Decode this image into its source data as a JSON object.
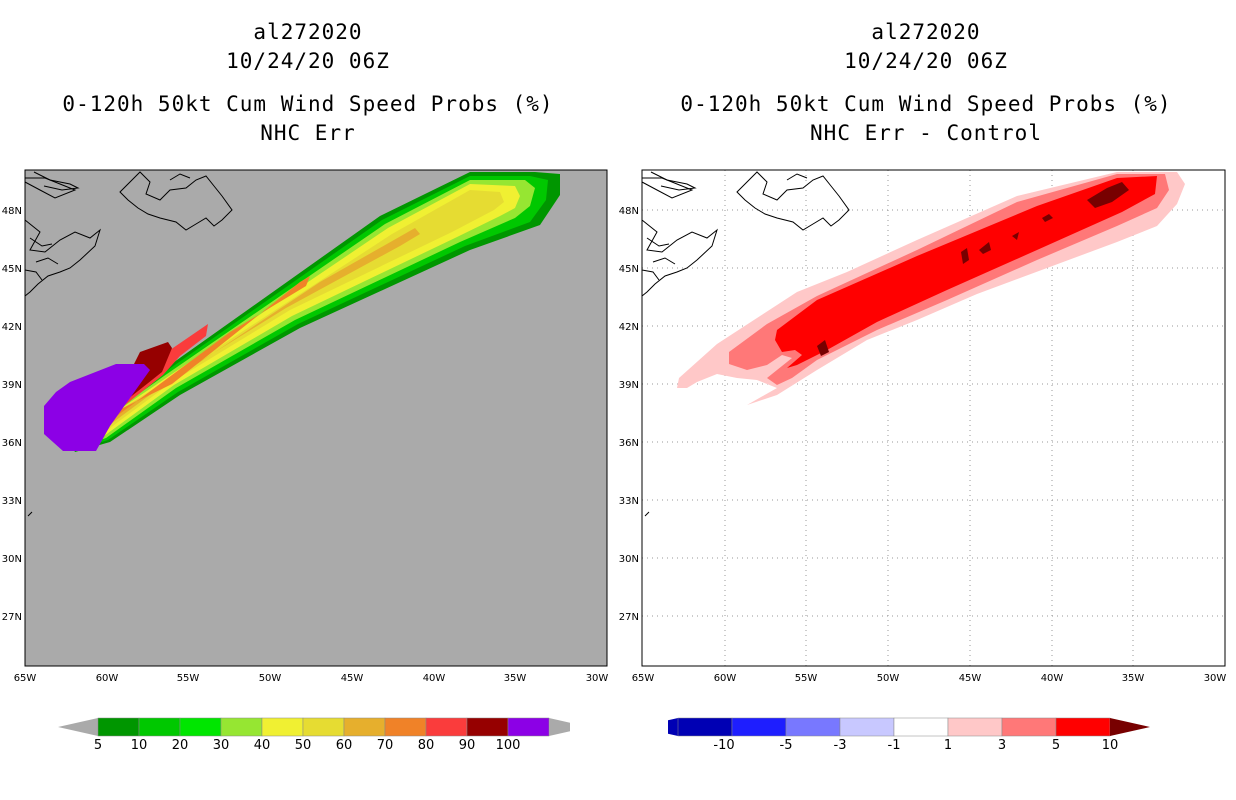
{
  "left_panel": {
    "title_lines": [
      "al272020",
      "10/24/20 06Z"
    ],
    "subtitle_lines": [
      "0-120h 50kt Cum Wind Speed Probs (%)",
      "NHC Err"
    ],
    "background_color": "#aaaaaa",
    "colorbar": {
      "labels": [
        "5",
        "10",
        "20",
        "30",
        "40",
        "50",
        "60",
        "70",
        "80",
        "90",
        "100"
      ],
      "colors": [
        "#009600",
        "#00c800",
        "#00e600",
        "#96e632",
        "#f0f032",
        "#e6dc32",
        "#e6af2d",
        "#f08228",
        "#fa3c3c",
        "#960000",
        "#8c00e6"
      ],
      "under_color": "#aaaaaa",
      "over_color": "#aaaaaa"
    }
  },
  "right_panel": {
    "title_lines": [
      "al272020",
      "10/24/20 06Z"
    ],
    "subtitle_lines": [
      "0-120h 50kt Cum Wind Speed Probs (%)",
      "NHC Err - Control"
    ],
    "background_color": "#ffffff",
    "colorbar": {
      "labels": [
        "-10",
        "-5",
        "-3",
        "-1",
        "1",
        "3",
        "5",
        "10"
      ],
      "colors": [
        "#0000b4",
        "#1e1eff",
        "#7878ff",
        "#c8c8ff",
        "#ffffff",
        "#ffc8c8",
        "#ff7878",
        "#ff0000"
      ],
      "under_color": "#0000b4",
      "over_color": "#780000"
    }
  },
  "axes": {
    "lon_labels": [
      "65W",
      "60W",
      "55W",
      "50W",
      "45W",
      "40W",
      "35W",
      "30W"
    ],
    "lat_labels": [
      "48N",
      "45N",
      "42N",
      "39N",
      "36N",
      "33N",
      "30N",
      "27N"
    ]
  }
}
